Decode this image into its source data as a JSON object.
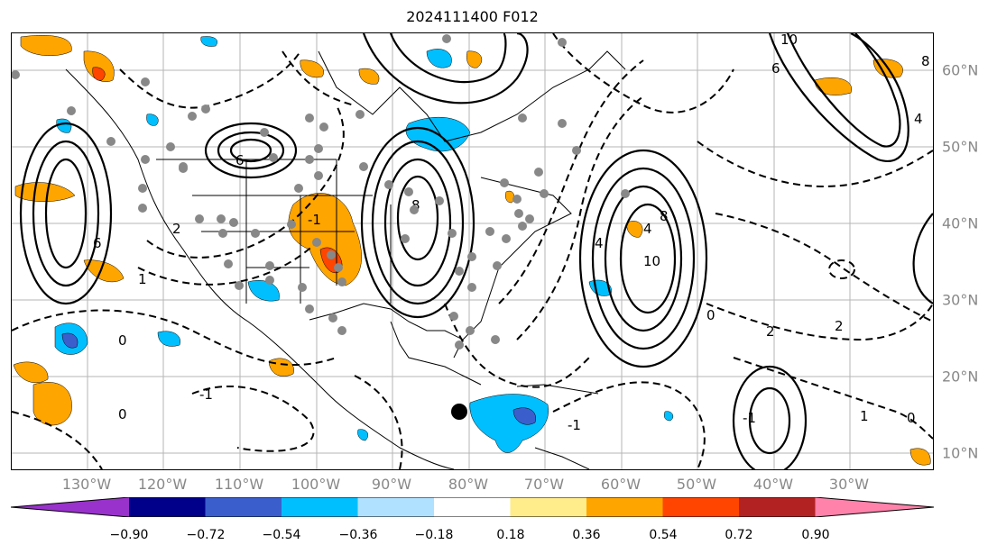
{
  "title": "2024111400 F012",
  "lon_labels": [
    "130°W",
    "120°W",
    "110°W",
    "100°W",
    "90°W",
    "80°W",
    "70°W",
    "60°W",
    "50°W",
    "40°W",
    "30°W"
  ],
  "lat_labels": [
    "60°N",
    "50°N",
    "40°N",
    "30°N",
    "20°N",
    "10°N"
  ],
  "colorbar": {
    "ticks": [
      "−0.90",
      "−0.72",
      "−0.54",
      "−0.36",
      "−0.18",
      "0.18",
      "0.36",
      "0.54",
      "0.72",
      "0.90"
    ],
    "colors": [
      "#9932cc",
      "#00008b",
      "#3a5fcd",
      "#00bfff",
      "#b0e2ff",
      "#ffffff",
      "#ffec8b",
      "#ffa500",
      "#ff4500",
      "#b22222",
      "#ff82ab"
    ]
  },
  "contour_labels": [
    "10",
    "8",
    "6",
    "4",
    "2",
    "0",
    "-1",
    "2",
    "6",
    "8",
    "10",
    "4",
    "0",
    "-1",
    "1",
    "0",
    "-1",
    "1",
    "0",
    "-1",
    "2",
    "4",
    "6",
    "8"
  ]
}
